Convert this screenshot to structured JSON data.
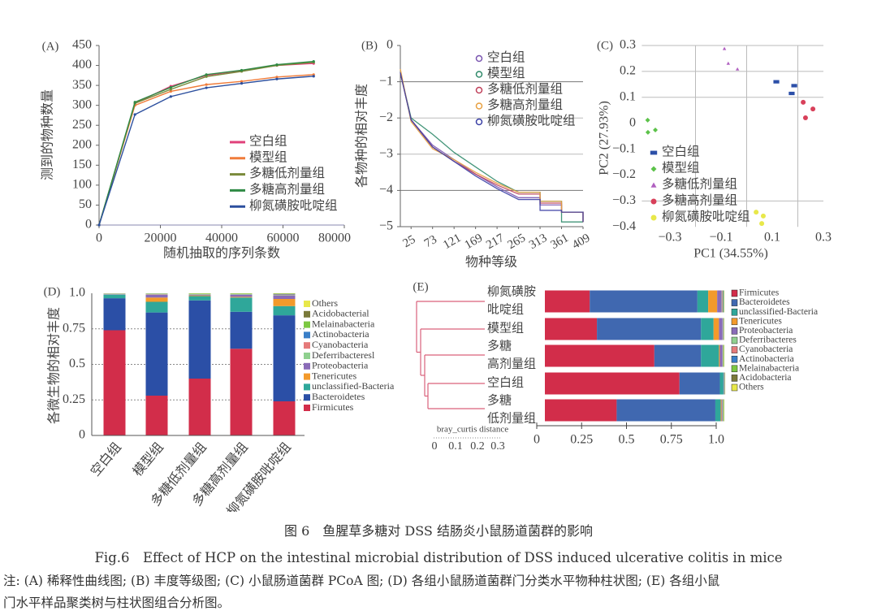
{
  "caption": {
    "title_cn": "图 6　鱼腥草多糖对 DSS 结肠炎小鼠肠道菌群的影响",
    "title_en": "Fig.6　Effect of HCP on the intestinal microbial distribution of DSS induced ulcerative colitis in mice",
    "note_line1": "注: (A) 稀释性曲线图; (B) 丰度等级图; (C) 小鼠肠道菌群 PCoA 图; (D) 各组小鼠肠道菌群门分类水平物种柱状图; (E) 各组小鼠",
    "note_line2": "门水平样品聚类树与柱状图组合分析图。"
  },
  "chart_data": [
    {
      "panel": "(A)",
      "type": "line",
      "title": "",
      "xlabel": "随机抽取的序列条数",
      "ylabel": "测到的物种数量",
      "xlim": [
        0,
        80000
      ],
      "ylim": [
        0,
        450
      ],
      "xticks": [
        "0",
        "20000",
        "40000",
        "60000",
        "80000"
      ],
      "yticks": [
        "0",
        "50",
        "100",
        "150",
        "200",
        "250",
        "300",
        "350",
        "400",
        "450"
      ],
      "legend_position": "bottom-right",
      "x": [
        0,
        11700,
        23400,
        35000,
        46500,
        58000,
        70000
      ],
      "series": [
        {
          "name": "空白组",
          "color": "#e0407a",
          "values": [
            0,
            305,
            348,
            375,
            387,
            400,
            405
          ]
        },
        {
          "name": "模型组",
          "color": "#f07c3a",
          "values": [
            0,
            300,
            335,
            352,
            360,
            371,
            377
          ]
        },
        {
          "name": "多糖低剂量组",
          "color": "#7a8a3a",
          "values": [
            0,
            305,
            340,
            372,
            385,
            400,
            408
          ]
        },
        {
          "name": "多糖高剂量组",
          "color": "#2f8a45",
          "values": [
            0,
            308,
            345,
            377,
            388,
            402,
            410
          ]
        },
        {
          "name": "柳氮磺胺吡啶组",
          "color": "#2c4f9e",
          "values": [
            0,
            277,
            322,
            344,
            355,
            366,
            373
          ]
        }
      ]
    },
    {
      "panel": "(B)",
      "type": "line",
      "title": "",
      "xlabel": "物种等级",
      "ylabel": "各物种的相对丰度",
      "xlim": [
        1,
        409
      ],
      "ylim": [
        -5,
        0
      ],
      "xticks": [
        "25",
        "73",
        "121",
        "169",
        "217",
        "265",
        "313",
        "361",
        "409"
      ],
      "yticks": [
        "0",
        "-1",
        "-2",
        "-3",
        "-4",
        "-5"
      ],
      "grid": true,
      "legend_position": "top-right",
      "x": [
        1,
        25,
        73,
        121,
        169,
        217,
        265,
        313,
        361,
        409
      ],
      "series": [
        {
          "name": "空白组",
          "color": "#7a55b0",
          "values": [
            -0.75,
            -2.05,
            -2.75,
            -3.15,
            -3.55,
            -3.9,
            -4.2,
            -4.4,
            -4.6,
            -4.87
          ]
        },
        {
          "name": "模型组",
          "color": "#2f8a6a",
          "values": [
            -0.75,
            -2.0,
            -2.45,
            -2.95,
            -3.35,
            -3.75,
            -4.05,
            -4.3,
            -4.87,
            -4.87
          ]
        },
        {
          "name": "多糖低剂量组",
          "color": "#c0405a",
          "values": [
            -0.75,
            -2.05,
            -2.8,
            -3.2,
            -3.55,
            -3.85,
            -4.1,
            -4.35,
            -4.6,
            -4.87
          ]
        },
        {
          "name": "多糖高剂量组",
          "color": "#e8a040",
          "values": [
            -0.65,
            -2.1,
            -2.85,
            -3.15,
            -3.5,
            -3.8,
            -4.05,
            -4.3,
            -4.6,
            -4.87
          ]
        },
        {
          "name": "柳氮磺胺吡啶组",
          "color": "#3a3fa5",
          "values": [
            -0.75,
            -2.05,
            -2.8,
            -3.2,
            -3.6,
            -3.95,
            -4.25,
            -4.55,
            -4.6,
            -4.87
          ]
        }
      ]
    },
    {
      "panel": "(C)",
      "type": "scatter",
      "title": "",
      "xlabel": "PC1 (34.55%)",
      "ylabel": "PC2 (27.93%)",
      "xlim": [
        -0.41,
        0.3
      ],
      "ylim": [
        -0.4,
        0.3
      ],
      "xticks": [
        "-0.3",
        "-0.1",
        "0.1",
        "0.3"
      ],
      "yticks": [
        "0.3",
        "0.2",
        "0.1",
        "0",
        "-0.1",
        "-0.2",
        "-0.3",
        "-0.4"
      ],
      "legend_position": "bottom-left",
      "series": [
        {
          "name": "空白组",
          "color": "#2c4fa8",
          "marker": "square",
          "points": [
            [
              0.116,
              0.16
            ],
            [
              0.176,
              0.115
            ],
            [
              0.186,
              0.145
            ]
          ]
        },
        {
          "name": "模型组",
          "color": "#5cc24a",
          "marker": "diamond",
          "points": [
            [
              -0.387,
              0.012
            ],
            [
              -0.386,
              -0.035
            ],
            [
              -0.357,
              -0.026
            ]
          ]
        },
        {
          "name": "多糖低剂量组",
          "color": "#b060c0",
          "marker": "triangle",
          "points": [
            [
              -0.087,
              0.288
            ],
            [
              -0.072,
              0.231
            ],
            [
              -0.036,
              0.209
            ]
          ]
        },
        {
          "name": "多糖高剂量组",
          "color": "#d8405a",
          "marker": "circle",
          "points": [
            [
              0.221,
              0.081
            ],
            [
              0.259,
              0.055
            ],
            [
              0.23,
              0.021
            ]
          ]
        },
        {
          "name": "柳氮磺胺吡啶组",
          "color": "#e8e84a",
          "marker": "circle",
          "points": [
            [
              0.037,
              -0.343
            ],
            [
              0.065,
              -0.358
            ],
            [
              0.059,
              -0.387
            ]
          ]
        }
      ]
    },
    {
      "panel": "(D)",
      "type": "bar",
      "stacked": true,
      "title": "",
      "xlabel": "",
      "ylabel": "各微生物的相对丰度",
      "ylim": [
        0,
        1.0
      ],
      "yticks": [
        "0",
        "0.25",
        "0.5",
        "0.75",
        "1.0"
      ],
      "legend_position": "right",
      "categories": [
        "空白组",
        "模型组",
        "多糖低剂量组",
        "多糖高剂量组",
        "柳氮磺胺吡啶组"
      ],
      "series": [
        {
          "name": "Firmicutes",
          "color": "#d22d4a",
          "values": [
            0.74,
            0.28,
            0.4,
            0.61,
            0.24
          ]
        },
        {
          "name": "Bacteroidetes",
          "color": "#2b4fa6",
          "values": [
            0.225,
            0.585,
            0.55,
            0.26,
            0.605
          ]
        },
        {
          "name": "unclassified-Bacteria",
          "color": "#2fa79a",
          "values": [
            0.025,
            0.075,
            0.03,
            0.1,
            0.065
          ]
        },
        {
          "name": "Tenericutes",
          "color": "#f39a2b",
          "values": [
            0.0,
            0.03,
            0.005,
            0.005,
            0.05
          ]
        },
        {
          "name": "Proteobacteria",
          "color": "#8a6bb8",
          "values": [
            0.003,
            0.02,
            0.005,
            0.015,
            0.025
          ]
        },
        {
          "name": "Deferribacteresl",
          "color": "#8fd08f",
          "values": [
            0.002,
            0.002,
            0.002,
            0.002,
            0.003
          ]
        },
        {
          "name": "Cyanobacteria",
          "color": "#e57a7a",
          "values": [
            0.001,
            0.002,
            0.001,
            0.001,
            0.003
          ]
        },
        {
          "name": "Actinobacteria",
          "color": "#3a7fc8",
          "values": [
            0.001,
            0.002,
            0.001,
            0.001,
            0.003
          ]
        },
        {
          "name": "Melainabacteria",
          "color": "#7cc842",
          "values": [
            0.001,
            0.002,
            0.004,
            0.004,
            0.003
          ]
        },
        {
          "name": "Acidobacterial",
          "color": "#7a7a3a",
          "values": [
            0.001,
            0.001,
            0.001,
            0.001,
            0.002
          ]
        },
        {
          "name": "Others",
          "color": "#e8e84a",
          "values": [
            0.001,
            0.001,
            0.001,
            0.001,
            0.001
          ]
        }
      ]
    },
    {
      "panel": "(E)",
      "type": "bar",
      "orientation": "horizontal",
      "stacked": true,
      "title": "",
      "xlim": [
        0,
        1.0
      ],
      "xticks": [
        "0",
        "0.25",
        "0.5",
        "0.75",
        "1.0"
      ],
      "legend_position": "right",
      "dendrogram_label": "bray_curtis distance",
      "dendrogram_ticks": [
        "0",
        "0.1",
        "0.2",
        "0.3"
      ],
      "categories": [
        [
          "柳氮磺胺",
          "吡啶组"
        ],
        [
          "模型组"
        ],
        [
          "多糖",
          "高剂量组"
        ],
        [
          "空白组"
        ],
        [
          "多糖",
          "低剂量组"
        ]
      ],
      "series": [
        {
          "name": "Firmicutes",
          "color": "#d22d4a",
          "values": [
            0.25,
            0.29,
            0.61,
            0.75,
            0.4
          ]
        },
        {
          "name": "Bacteroidetes",
          "color": "#4068b0",
          "values": [
            0.6,
            0.58,
            0.26,
            0.225,
            0.55
          ]
        },
        {
          "name": "unclassified-Bacteria",
          "color": "#2fa79a",
          "values": [
            0.06,
            0.07,
            0.1,
            0.02,
            0.03
          ]
        },
        {
          "name": "Tenericutes",
          "color": "#f39a2b",
          "values": [
            0.05,
            0.03,
            0.005,
            0.0,
            0.005
          ]
        },
        {
          "name": "Proteobacteria",
          "color": "#8a6bb8",
          "values": [
            0.025,
            0.02,
            0.015,
            0.003,
            0.005
          ]
        },
        {
          "name": "Deferribacteres",
          "color": "#8fd08f",
          "values": [
            0.003,
            0.002,
            0.002,
            0.002,
            0.002
          ]
        },
        {
          "name": "Cyanobacteria",
          "color": "#e57a7a",
          "values": [
            0.003,
            0.002,
            0.001,
            0.001,
            0.001
          ]
        },
        {
          "name": "Actinobacteria",
          "color": "#3a7fc8",
          "values": [
            0.003,
            0.002,
            0.001,
            0.001,
            0.001
          ]
        },
        {
          "name": "Melainabacteria",
          "color": "#7cc842",
          "values": [
            0.003,
            0.002,
            0.004,
            0.001,
            0.004
          ]
        },
        {
          "name": "Acidobacteria",
          "color": "#7a7a3a",
          "values": [
            0.002,
            0.001,
            0.001,
            0.001,
            0.001
          ]
        },
        {
          "name": "Others",
          "color": "#e8e84a",
          "values": [
            0.001,
            0.001,
            0.001,
            0.001,
            0.001
          ]
        }
      ]
    }
  ]
}
